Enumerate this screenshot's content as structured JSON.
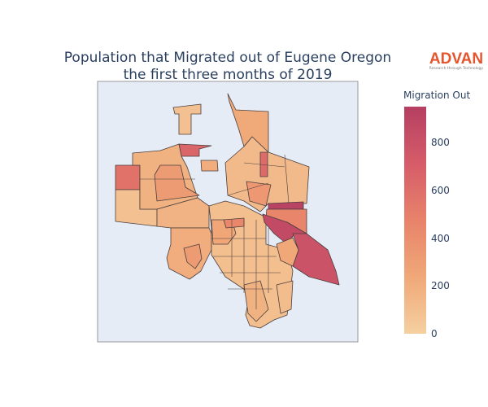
{
  "chart_data": {
    "type": "choropleth",
    "title_line1": "Population that Migrated out of Eugene Oregon",
    "title_line2": "the first three months of 2019",
    "colorbar": {
      "title": "Migration Out",
      "range": [
        0,
        950
      ],
      "ticks": [
        "0",
        "200",
        "400",
        "600",
        "800"
      ],
      "tick_values": [
        0,
        200,
        400,
        600,
        800
      ],
      "colorscale": [
        "#f5d0a0",
        "#f0a878",
        "#e8836a",
        "#d65c69",
        "#b53f62"
      ]
    },
    "regions": [
      {
        "name": "north-spike",
        "value": 230
      },
      {
        "name": "northwest-small",
        "value": 90
      },
      {
        "name": "isolated-square",
        "value": 210
      },
      {
        "name": "north-strip",
        "value": 650
      },
      {
        "name": "west-block",
        "value": 580
      },
      {
        "name": "west-lower",
        "value": 90
      },
      {
        "name": "northwest-cluster",
        "value": 180
      },
      {
        "name": "northwest-mid",
        "value": 320
      },
      {
        "name": "mid-west",
        "value": 170
      },
      {
        "name": "southwest",
        "value": 210
      },
      {
        "name": "southwest-inner",
        "value": 320
      },
      {
        "name": "central-grid",
        "value": 100
      },
      {
        "name": "central-a",
        "value": 250
      },
      {
        "name": "central-b",
        "value": 450
      },
      {
        "name": "south-tail",
        "value": 180
      },
      {
        "name": "northeast",
        "value": 130
      },
      {
        "name": "northeast-red",
        "value": 620
      },
      {
        "name": "northeast-mid",
        "value": 340
      },
      {
        "name": "east-top-strip",
        "value": 920
      },
      {
        "name": "east-medium",
        "value": 460
      },
      {
        "name": "river-strip",
        "value": 860
      },
      {
        "name": "southeast",
        "value": 790
      },
      {
        "name": "east-inner",
        "value": 240
      },
      {
        "name": "south-east-small",
        "value": 120
      }
    ]
  },
  "logo": {
    "text": "ADVAN",
    "tagline": "Research through Technology"
  }
}
